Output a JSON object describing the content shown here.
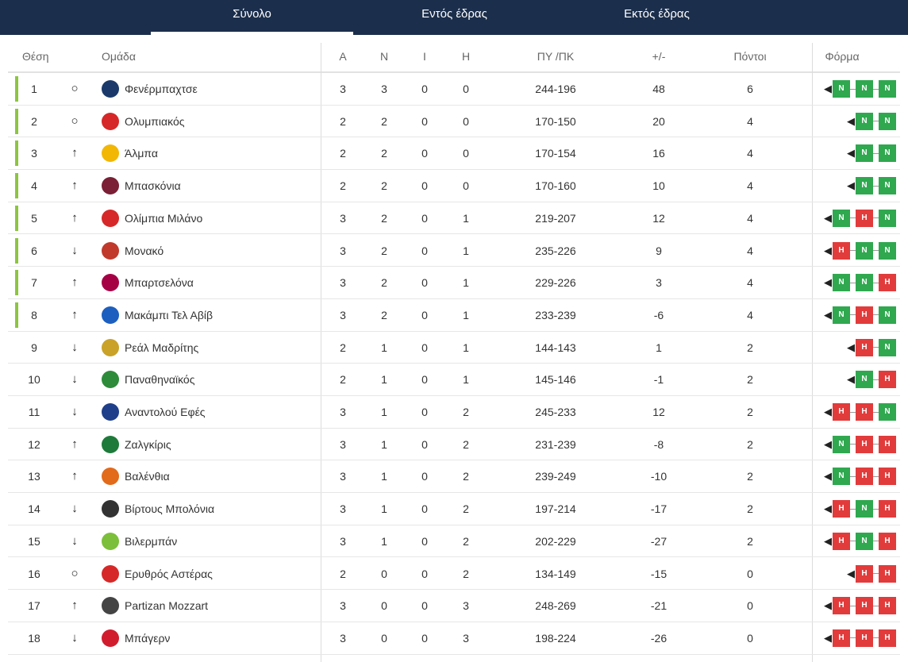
{
  "tabs": [
    {
      "label": "Σύνολο",
      "active": true
    },
    {
      "label": "Εντός έδρας",
      "active": false
    },
    {
      "label": "Εκτός έδρας",
      "active": false
    }
  ],
  "columns": {
    "position": "Θέση",
    "team": "Ομάδα",
    "played": "A",
    "wins": "N",
    "draws": "I",
    "losses": "H",
    "points_for_against": "ΠΥ /ΠΚ",
    "diff": "+/-",
    "points": "Πόντοι",
    "form": "Φόρμα"
  },
  "colors": {
    "win": "#2fa84f",
    "loss": "#e23b3b",
    "qualify": "#8cc63f",
    "header": "#1b2e4c"
  },
  "rows": [
    {
      "pos": "1",
      "trend": "○",
      "team": "Φενέρμπαχτσε",
      "p": "3",
      "w": "3",
      "d": "0",
      "l": "0",
      "score": "244-196",
      "diff": "48",
      "pts": "6",
      "form": [
        "N",
        "N",
        "N"
      ],
      "qualify": true,
      "logo": "#1b3a6b"
    },
    {
      "pos": "2",
      "trend": "○",
      "team": "Ολυμπιακός",
      "p": "2",
      "w": "2",
      "d": "0",
      "l": "0",
      "score": "170-150",
      "diff": "20",
      "pts": "4",
      "form": [
        "N",
        "N"
      ],
      "qualify": true,
      "logo": "#d62828"
    },
    {
      "pos": "3",
      "trend": "↑",
      "team": "Άλμπα",
      "p": "2",
      "w": "2",
      "d": "0",
      "l": "0",
      "score": "170-154",
      "diff": "16",
      "pts": "4",
      "form": [
        "N",
        "N"
      ],
      "qualify": true,
      "logo": "#f2b705"
    },
    {
      "pos": "4",
      "trend": "↑",
      "team": "Μπασκόνια",
      "p": "2",
      "w": "2",
      "d": "0",
      "l": "0",
      "score": "170-160",
      "diff": "10",
      "pts": "4",
      "form": [
        "N",
        "N"
      ],
      "qualify": true,
      "logo": "#7a1f35"
    },
    {
      "pos": "5",
      "trend": "↑",
      "team": "Ολίμπια Μιλάνο",
      "p": "3",
      "w": "2",
      "d": "0",
      "l": "1",
      "score": "219-207",
      "diff": "12",
      "pts": "4",
      "form": [
        "N",
        "H",
        "N"
      ],
      "qualify": true,
      "logo": "#d62828"
    },
    {
      "pos": "6",
      "trend": "↓",
      "team": "Μονακό",
      "p": "3",
      "w": "2",
      "d": "0",
      "l": "1",
      "score": "235-226",
      "diff": "9",
      "pts": "4",
      "form": [
        "H",
        "N",
        "N"
      ],
      "qualify": true,
      "logo": "#c0392b"
    },
    {
      "pos": "7",
      "trend": "↑",
      "team": "Μπαρτσελόνα",
      "p": "3",
      "w": "2",
      "d": "0",
      "l": "1",
      "score": "229-226",
      "diff": "3",
      "pts": "4",
      "form": [
        "N",
        "N",
        "H"
      ],
      "qualify": true,
      "logo": "#a50044"
    },
    {
      "pos": "8",
      "trend": "↑",
      "team": "Μακάμπι Τελ Αβίβ",
      "p": "3",
      "w": "2",
      "d": "0",
      "l": "1",
      "score": "233-239",
      "diff": "-6",
      "pts": "4",
      "form": [
        "N",
        "H",
        "N"
      ],
      "qualify": true,
      "logo": "#1d5fbf"
    },
    {
      "pos": "9",
      "trend": "↓",
      "team": "Ρεάλ Μαδρίτης",
      "p": "2",
      "w": "1",
      "d": "0",
      "l": "1",
      "score": "144-143",
      "diff": "1",
      "pts": "2",
      "form": [
        "H",
        "N"
      ],
      "qualify": false,
      "logo": "#c9a227"
    },
    {
      "pos": "10",
      "trend": "↓",
      "team": "Παναθηναϊκός",
      "p": "2",
      "w": "1",
      "d": "0",
      "l": "1",
      "score": "145-146",
      "diff": "-1",
      "pts": "2",
      "form": [
        "N",
        "H"
      ],
      "qualify": false,
      "logo": "#2e8b3a"
    },
    {
      "pos": "11",
      "trend": "↓",
      "team": "Αναντολού Εφές",
      "p": "3",
      "w": "1",
      "d": "0",
      "l": "2",
      "score": "245-233",
      "diff": "12",
      "pts": "2",
      "form": [
        "H",
        "H",
        "N"
      ],
      "qualify": false,
      "logo": "#1f3f8a"
    },
    {
      "pos": "12",
      "trend": "↑",
      "team": "Ζαλγκίρις",
      "p": "3",
      "w": "1",
      "d": "0",
      "l": "2",
      "score": "231-239",
      "diff": "-8",
      "pts": "2",
      "form": [
        "N",
        "H",
        "H"
      ],
      "qualify": false,
      "logo": "#1e7a3a"
    },
    {
      "pos": "13",
      "trend": "↑",
      "team": "Βαλένθια",
      "p": "3",
      "w": "1",
      "d": "0",
      "l": "2",
      "score": "239-249",
      "diff": "-10",
      "pts": "2",
      "form": [
        "N",
        "H",
        "H"
      ],
      "qualify": false,
      "logo": "#e26a1b"
    },
    {
      "pos": "14",
      "trend": "↓",
      "team": "Βίρτους Μπολόνια",
      "p": "3",
      "w": "1",
      "d": "0",
      "l": "2",
      "score": "197-214",
      "diff": "-17",
      "pts": "2",
      "form": [
        "H",
        "N",
        "H"
      ],
      "qualify": false,
      "logo": "#333333"
    },
    {
      "pos": "15",
      "trend": "↓",
      "team": "Βιλερμπάν",
      "p": "3",
      "w": "1",
      "d": "0",
      "l": "2",
      "score": "202-229",
      "diff": "-27",
      "pts": "2",
      "form": [
        "H",
        "N",
        "H"
      ],
      "qualify": false,
      "logo": "#7cbf3a"
    },
    {
      "pos": "16",
      "trend": "○",
      "team": "Ερυθρός Αστέρας",
      "p": "2",
      "w": "0",
      "d": "0",
      "l": "2",
      "score": "134-149",
      "diff": "-15",
      "pts": "0",
      "form": [
        "H",
        "H"
      ],
      "qualify": false,
      "logo": "#d62828"
    },
    {
      "pos": "17",
      "trend": "↑",
      "team": "Partizan Mozzart",
      "p": "3",
      "w": "0",
      "d": "0",
      "l": "3",
      "score": "248-269",
      "diff": "-21",
      "pts": "0",
      "form": [
        "H",
        "H",
        "H"
      ],
      "qualify": false,
      "logo": "#444444"
    },
    {
      "pos": "18",
      "trend": "↓",
      "team": "Μπάγερν",
      "p": "3",
      "w": "0",
      "d": "0",
      "l": "3",
      "score": "198-224",
      "diff": "-26",
      "pts": "0",
      "form": [
        "H",
        "H",
        "H"
      ],
      "qualify": false,
      "logo": "#d11c2e"
    }
  ]
}
